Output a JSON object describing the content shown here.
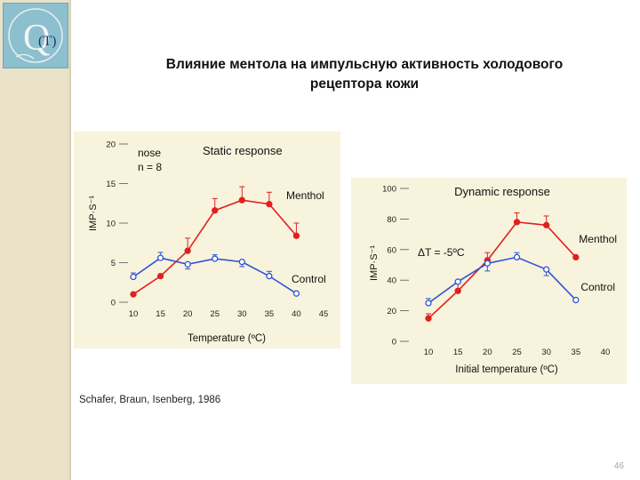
{
  "title": {
    "line1": "Влияние ментола на импульсную активность холодового",
    "line2": "рецептора кожи"
  },
  "citation": "Schafer, Braun, Isenberg, 1986",
  "page_number": "46",
  "logo": {
    "text": "(T)",
    "icon": "thermometer-q-logo-icon"
  },
  "colors": {
    "menthol": "#e02020",
    "control": "#2f55d8",
    "panel": "#f7f3dc",
    "sidebar": "#e9e2c9"
  },
  "chart_data": [
    {
      "type": "line",
      "title": "Static response",
      "annotation": [
        "nose",
        "n = 8"
      ],
      "xlabel": "Temperature (ºC)",
      "ylabel": "IMP·S⁻¹",
      "xlim": [
        10,
        45
      ],
      "ylim": [
        0,
        20
      ],
      "xticks": [
        10,
        15,
        20,
        25,
        30,
        35,
        40,
        45
      ],
      "yticks": [
        0,
        5,
        10,
        15,
        20
      ],
      "series": [
        {
          "name": "Menthol",
          "color": "#e02020",
          "marker": "filled",
          "x": [
            10,
            15,
            20,
            25,
            30,
            35,
            40
          ],
          "y": [
            1,
            3.3,
            6.5,
            11.6,
            12.9,
            12.4,
            8.4
          ],
          "err": [
            0,
            0,
            1.6,
            1.5,
            1.7,
            1.5,
            1.6
          ]
        },
        {
          "name": "Control",
          "color": "#2f55d8",
          "marker": "open",
          "x": [
            10,
            15,
            20,
            25,
            30,
            35,
            40
          ],
          "y": [
            3.2,
            5.6,
            4.8,
            5.5,
            5.1,
            3.3,
            1.1
          ],
          "err": [
            0.5,
            0.7,
            0.6,
            0.5,
            0.6,
            0.6,
            0
          ]
        }
      ]
    },
    {
      "type": "line",
      "title": "Dynamic response",
      "annotation": [
        "ΔT = -5ºC"
      ],
      "xlabel": "Initial temperature (ºC)",
      "ylabel": "IMP·S⁻¹",
      "xlim": [
        10,
        40
      ],
      "ylim": [
        0,
        100
      ],
      "xticks": [
        10,
        15,
        20,
        25,
        30,
        35,
        40
      ],
      "yticks": [
        0,
        20,
        40,
        60,
        80,
        100
      ],
      "series": [
        {
          "name": "Menthol",
          "color": "#e02020",
          "marker": "filled",
          "x": [
            10,
            15,
            20,
            25,
            30,
            35
          ],
          "y": [
            15,
            33,
            53,
            78,
            76,
            55
          ],
          "err": [
            3,
            5,
            5,
            6,
            6,
            0
          ]
        },
        {
          "name": "Control",
          "color": "#2f55d8",
          "marker": "open",
          "x": [
            10,
            15,
            20,
            25,
            30,
            35
          ],
          "y": [
            25,
            39,
            51,
            55,
            47,
            27
          ],
          "err": [
            3,
            0,
            5,
            3,
            4,
            0
          ]
        }
      ]
    }
  ]
}
